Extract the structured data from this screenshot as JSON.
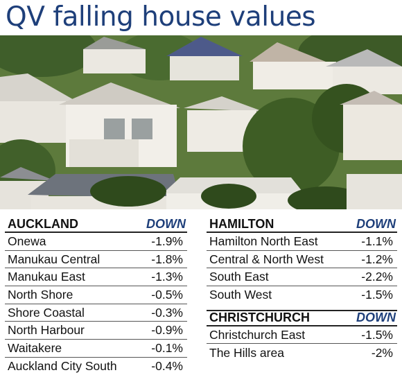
{
  "title": "QV falling house values",
  "down_label": "DOWN",
  "auckland": {
    "heading": "AUCKLAND",
    "rows": [
      {
        "name": "Onewa",
        "value": "-1.9%"
      },
      {
        "name": "Manukau Central",
        "value": "-1.8%"
      },
      {
        "name": "Manukau East",
        "value": "-1.3%"
      },
      {
        "name": "North Shore",
        "value": "-0.5%"
      },
      {
        "name": "Shore Coastal",
        "value": "-0.3%"
      },
      {
        "name": "North Harbour",
        "value": "-0.9%"
      },
      {
        "name": "Waitakere",
        "value": "-0.1%"
      },
      {
        "name": "Auckland City South",
        "value": "-0.4%"
      }
    ]
  },
  "hamilton": {
    "heading": "HAMILTON",
    "rows": [
      {
        "name": "Hamilton North East",
        "value": "-1.1%"
      },
      {
        "name": "Central & North West",
        "value": "-1.2%"
      },
      {
        "name": "South East",
        "value": "-2.2%"
      },
      {
        "name": "South West",
        "value": "-1.5%"
      }
    ]
  },
  "christchurch": {
    "heading": "CHRISTCHURCH",
    "rows": [
      {
        "name": "Christchurch East",
        "value": "-1.5%"
      },
      {
        "name": "The Hills area",
        "value": "-2%"
      }
    ]
  }
}
